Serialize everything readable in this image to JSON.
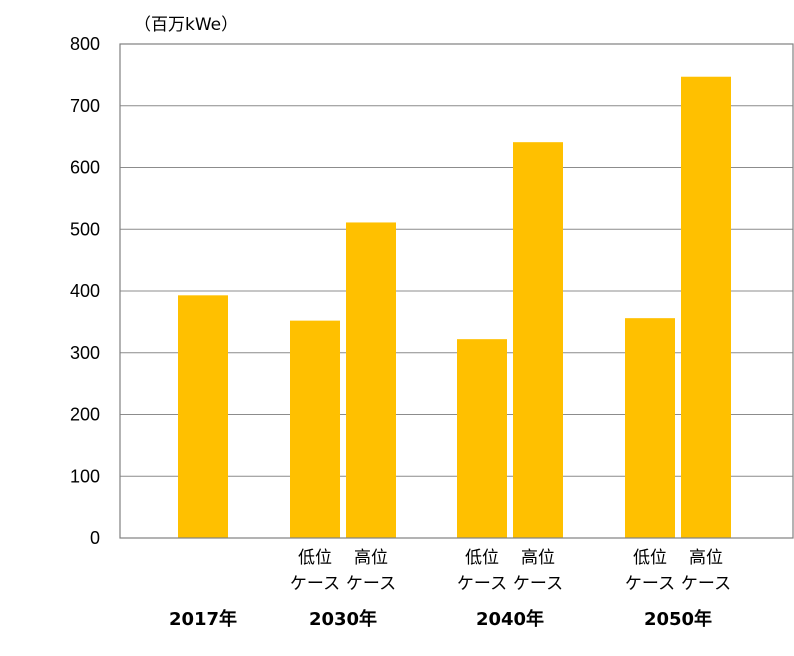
{
  "chart_data": {
    "type": "bar",
    "unit_label": "（百万kWe）",
    "ylim": [
      0,
      800
    ],
    "yticks": [
      0,
      100,
      200,
      300,
      400,
      500,
      600,
      700,
      800
    ],
    "grid": true,
    "bar_color": "#FFC000",
    "groups": [
      {
        "label": "2017年",
        "bars": [
          {
            "case": "",
            "value": 393
          }
        ]
      },
      {
        "label": "2030年",
        "bars": [
          {
            "case": "低位\nケース",
            "value": 352
          },
          {
            "case": "高位\nケース",
            "value": 511
          }
        ]
      },
      {
        "label": "2040年",
        "bars": [
          {
            "case": "低位\nケース",
            "value": 322
          },
          {
            "case": "高位\nケース",
            "value": 641
          }
        ]
      },
      {
        "label": "2050年",
        "bars": [
          {
            "case": "低位\nケース",
            "value": 356
          },
          {
            "case": "高位\nケース",
            "value": 747
          }
        ]
      }
    ]
  }
}
